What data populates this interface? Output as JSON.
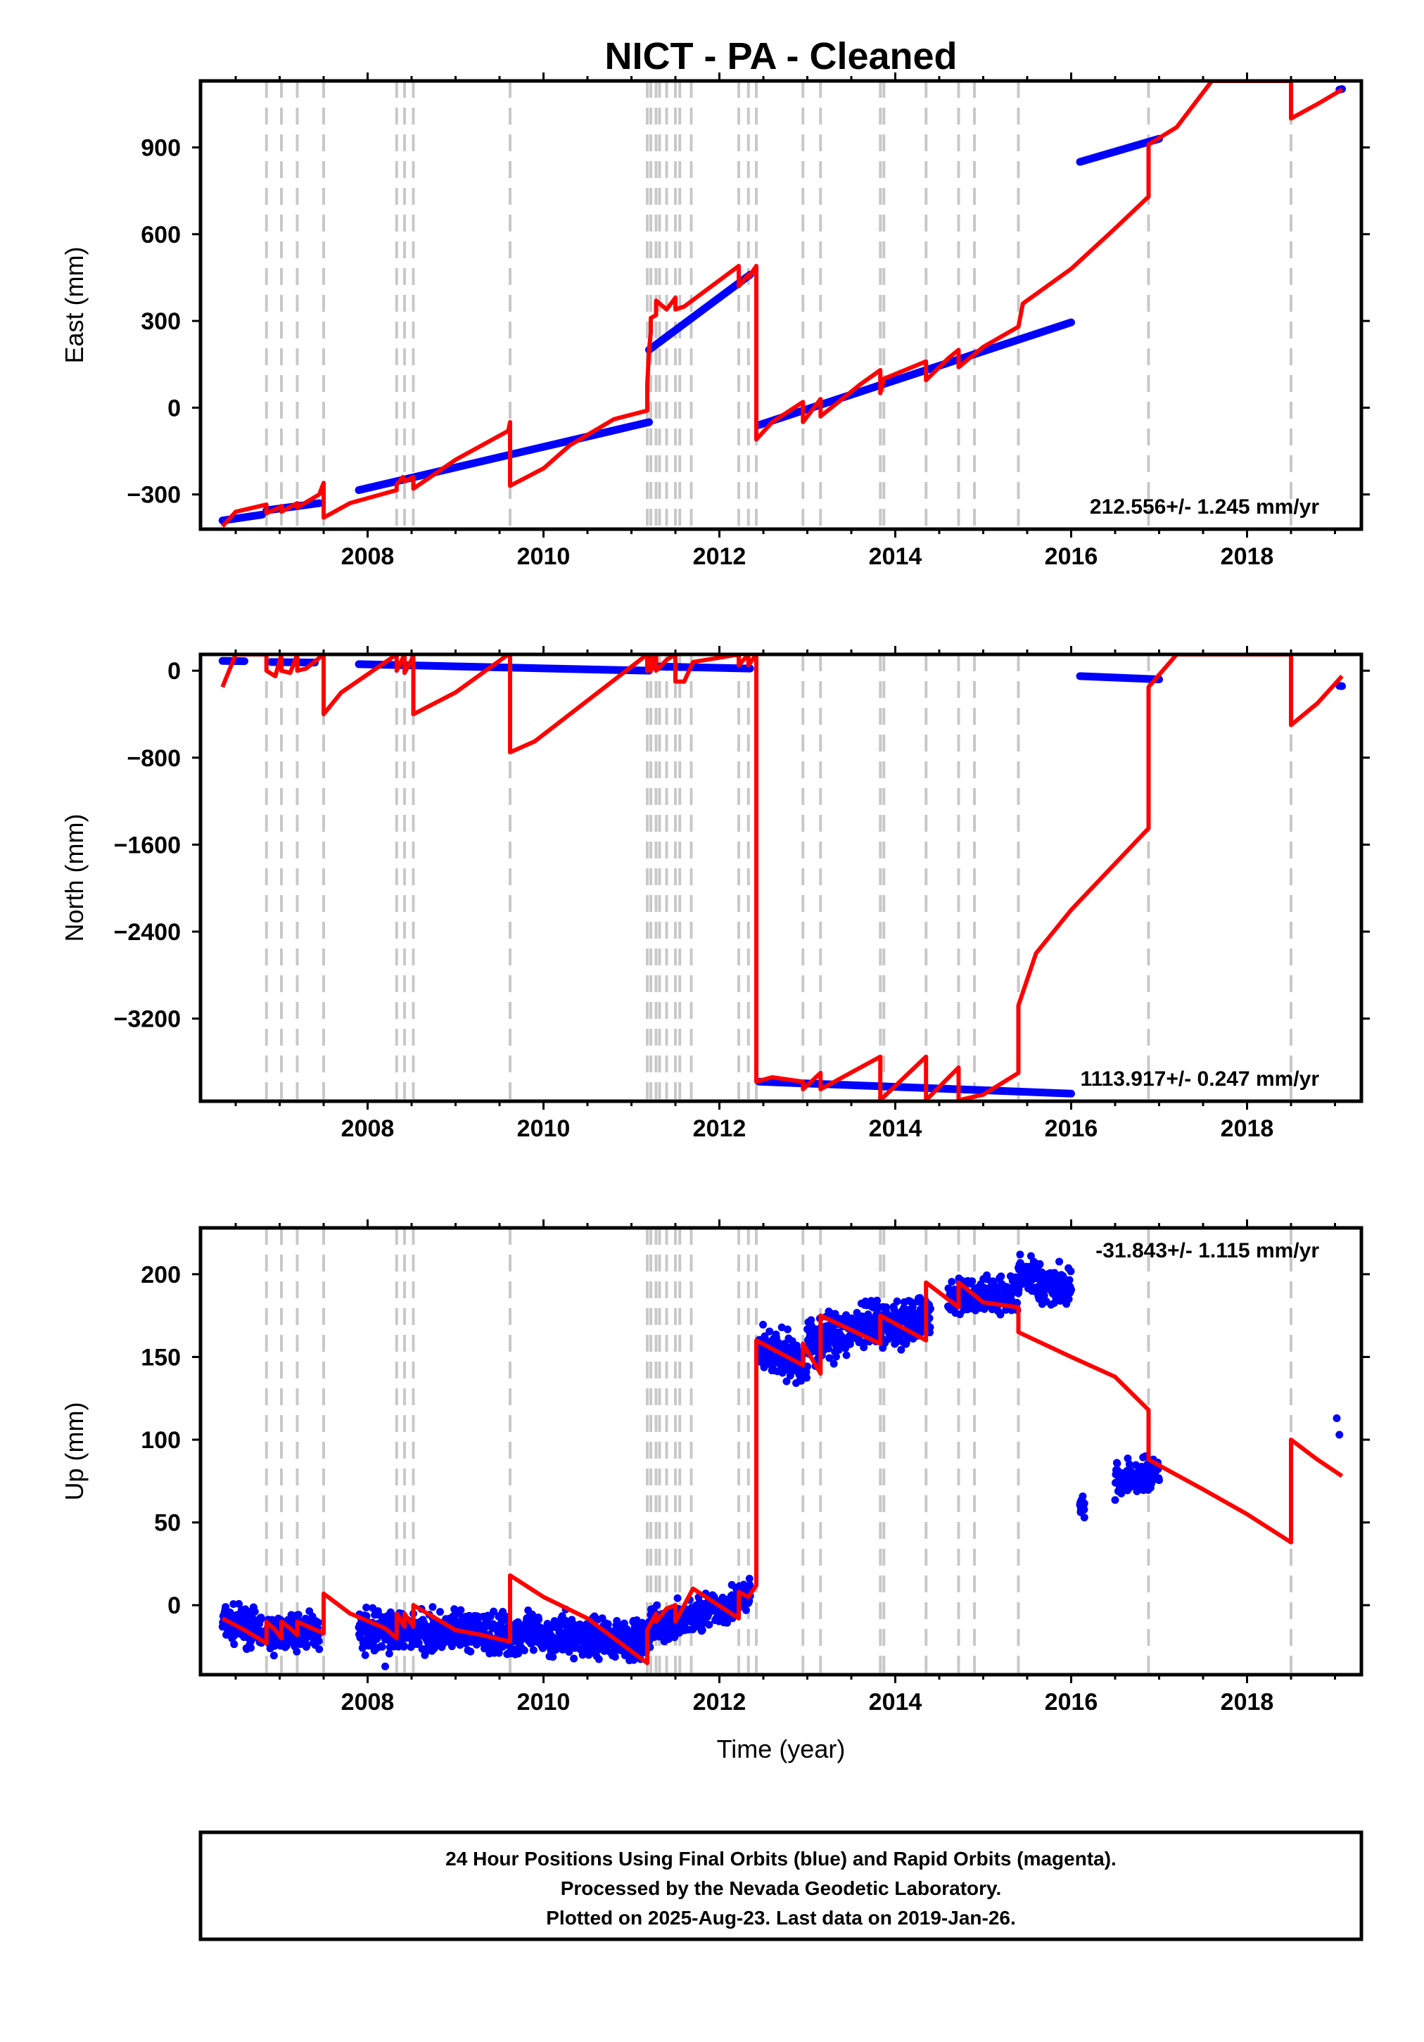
{
  "title": "NICT  - PA - Cleaned",
  "colors": {
    "model": "#ff0000",
    "observations": "#0000ff",
    "event_lines": "#c8c8c8",
    "frame": "#000000"
  },
  "footer": {
    "line1": "24 Hour Positions Using Final Orbits (blue) and Rapid Orbits (magenta).",
    "line2": "Processed by the Nevada Geodetic Laboratory.",
    "line3": "Plotted on 2025-Aug-23. Last data on 2019-Jan-26."
  },
  "chart_data": [
    {
      "type": "scatter",
      "name": "east",
      "ylabel": "East (mm)",
      "xlabel": "",
      "xlim": [
        2006.1,
        2019.3
      ],
      "ylim": [
        -420,
        1130
      ],
      "x_ticks": [
        2008,
        2010,
        2012,
        2014,
        2016,
        2018
      ],
      "x_tick_labels": [
        "2008",
        "2010",
        "2012",
        "2014",
        "2016",
        "2018"
      ],
      "y_ticks": [
        -300,
        0,
        300,
        600,
        900
      ],
      "y_tick_labels": [
        "−300",
        "0",
        "300",
        "600",
        "900"
      ],
      "rate": "212.556+/- 1.245 mm/yr",
      "rate_position": "bottom-right",
      "event_lines": [
        2006.85,
        2007.02,
        2007.2,
        2007.5,
        2008.33,
        2008.42,
        2008.52,
        2009.62,
        2011.18,
        2011.22,
        2011.28,
        2011.32,
        2011.4,
        2011.5,
        2011.55,
        2011.68,
        2012.22,
        2012.33,
        2012.42,
        2012.95,
        2013.15,
        2013.83,
        2013.87,
        2014.35,
        2014.72,
        2014.9,
        2015.4,
        2016.88,
        2018.5
      ],
      "observations": [
        {
          "x": [
            2006.35,
            2006.8
          ],
          "y": [
            -390,
            -370
          ]
        },
        {
          "x": [
            2006.85,
            2007.45
          ],
          "y": [
            -355,
            -330
          ]
        },
        {
          "x": [
            2007.9,
            2011.2
          ],
          "y": [
            -285,
            -50
          ]
        },
        {
          "x": [
            2011.2,
            2012.35
          ],
          "y": [
            200,
            460
          ]
        },
        {
          "x": [
            2012.45,
            2016.0
          ],
          "y": [
            -60,
            295
          ]
        },
        {
          "x": [
            2016.1,
            2017.0
          ],
          "y": [
            850,
            930
          ]
        },
        {
          "x": [
            2019.05,
            2019.08
          ],
          "y": [
            1100,
            1102
          ]
        }
      ],
      "model": {
        "x": [
          2006.35,
          2006.5,
          2006.85,
          2006.85,
          2007.0,
          2007.02,
          2007.02,
          2007.2,
          2007.2,
          2007.45,
          2007.5,
          2007.5,
          2007.8,
          2008.33,
          2008.33,
          2008.4,
          2008.42,
          2008.42,
          2008.52,
          2008.52,
          2009.0,
          2009.6,
          2009.62,
          2009.62,
          2010.0,
          2010.3,
          2010.8,
          2011.18,
          2011.18,
          2011.2,
          2011.22,
          2011.22,
          2011.28,
          2011.28,
          2011.4,
          2011.5,
          2011.5,
          2011.6,
          2012.22,
          2012.22,
          2012.33,
          2012.33,
          2012.42,
          2012.42,
          2012.6,
          2012.95,
          2012.95,
          2013.15,
          2013.15,
          2013.6,
          2013.83,
          2013.83,
          2013.87,
          2014.35,
          2014.35,
          2014.6,
          2014.72,
          2014.72,
          2015.0,
          2015.4,
          2015.45,
          2016.0,
          2016.5,
          2016.88,
          2016.88,
          2017.2,
          2017.6,
          2018.5,
          2018.5,
          2018.8,
          2019.08
        ],
        "y": [
          -410,
          -360,
          -335,
          -365,
          -345,
          -340,
          -360,
          -330,
          -345,
          -300,
          -260,
          -380,
          -330,
          -285,
          -265,
          -240,
          -250,
          -255,
          -240,
          -280,
          -180,
          -80,
          -50,
          -270,
          -210,
          -130,
          -40,
          -10,
          80,
          200,
          260,
          310,
          320,
          370,
          340,
          380,
          340,
          350,
          490,
          420,
          460,
          450,
          490,
          -110,
          -50,
          20,
          -50,
          30,
          -30,
          80,
          130,
          50,
          100,
          160,
          95,
          170,
          200,
          140,
          210,
          280,
          360,
          480,
          620,
          730,
          910,
          970,
          1130,
          1130,
          1000,
          1050,
          1100
        ]
      }
    },
    {
      "type": "scatter",
      "name": "north",
      "ylabel": "North (mm)",
      "xlabel": "",
      "xlim": [
        2006.1,
        2019.3
      ],
      "ylim": [
        -3960,
        150
      ],
      "x_ticks": [
        2008,
        2010,
        2012,
        2014,
        2016,
        2018
      ],
      "x_tick_labels": [
        "2008",
        "2010",
        "2012",
        "2014",
        "2016",
        "2018"
      ],
      "y_ticks": [
        -3200,
        -2400,
        -1600,
        -800,
        0
      ],
      "y_tick_labels": [
        "−3200",
        "−2400",
        "−1600",
        "−800",
        "0"
      ],
      "rate": "1113.917+/- 0.247 mm/yr",
      "rate_position": "bottom-right",
      "event_lines": [
        2006.85,
        2007.02,
        2007.2,
        2007.5,
        2008.33,
        2008.42,
        2008.52,
        2009.62,
        2011.18,
        2011.22,
        2011.28,
        2011.32,
        2011.4,
        2011.5,
        2011.55,
        2011.68,
        2012.22,
        2012.33,
        2012.42,
        2012.95,
        2013.15,
        2013.83,
        2013.87,
        2014.35,
        2014.72,
        2014.9,
        2015.4,
        2016.88,
        2018.5
      ],
      "observations": [
        {
          "x": [
            2006.35,
            2006.6
          ],
          "y": [
            90,
            88
          ]
        },
        {
          "x": [
            2006.9,
            2007.4
          ],
          "y": [
            80,
            75
          ]
        },
        {
          "x": [
            2007.9,
            2011.2
          ],
          "y": [
            60,
            0
          ]
        },
        {
          "x": [
            2011.2,
            2012.35
          ],
          "y": [
            40,
            20
          ]
        },
        {
          "x": [
            2012.45,
            2016.0
          ],
          "y": [
            -3780,
            -3890
          ]
        },
        {
          "x": [
            2016.1,
            2017.0
          ],
          "y": [
            -50,
            -80
          ]
        },
        {
          "x": [
            2019.05,
            2019.08
          ],
          "y": [
            -140,
            -142
          ]
        }
      ],
      "model": {
        "x": [
          2006.35,
          2006.5,
          2006.55,
          2006.85,
          2006.85,
          2006.95,
          2007.02,
          2007.02,
          2007.12,
          2007.2,
          2007.2,
          2007.3,
          2007.5,
          2007.5,
          2007.7,
          2008.33,
          2008.33,
          2008.42,
          2008.42,
          2008.5,
          2008.52,
          2008.52,
          2009.0,
          2009.6,
          2009.62,
          2009.62,
          2009.9,
          2011.18,
          2011.18,
          2011.22,
          2011.22,
          2011.28,
          2011.28,
          2011.4,
          2011.5,
          2011.5,
          2011.6,
          2011.7,
          2012.22,
          2012.22,
          2012.33,
          2012.33,
          2012.42,
          2012.42,
          2012.6,
          2012.95,
          2012.95,
          2013.15,
          2013.15,
          2013.83,
          2013.83,
          2014.35,
          2014.35,
          2014.72,
          2014.72,
          2015.0,
          2015.4,
          2015.4,
          2015.6,
          2016.0,
          2016.88,
          2016.88,
          2017.2,
          2018.5,
          2018.5,
          2018.8,
          2019.08
        ],
        "y": [
          -150,
          150,
          150,
          150,
          0,
          -50,
          150,
          0,
          -20,
          150,
          0,
          20,
          150,
          -400,
          -200,
          150,
          0,
          150,
          -20,
          100,
          150,
          -400,
          -200,
          150,
          150,
          -750,
          -650,
          150,
          0,
          150,
          0,
          150,
          0,
          100,
          150,
          -100,
          -100,
          80,
          150,
          50,
          150,
          50,
          150,
          -3780,
          -3740,
          -3780,
          -3850,
          -3700,
          -3850,
          -3550,
          -3950,
          -3550,
          -3950,
          -3650,
          -3950,
          -3900,
          -3700,
          -3080,
          -2600,
          -2200,
          -1450,
          -150,
          150,
          150,
          -500,
          -300,
          -50
        ]
      }
    },
    {
      "type": "scatter",
      "name": "up",
      "ylabel": "Up (mm)",
      "xlabel": "Time (year)",
      "xlim": [
        2006.1,
        2019.3
      ],
      "ylim": [
        -42,
        228
      ],
      "x_ticks": [
        2008,
        2010,
        2012,
        2014,
        2016,
        2018
      ],
      "x_tick_labels": [
        "2008",
        "2010",
        "2012",
        "2014",
        "2016",
        "2018"
      ],
      "y_ticks": [
        0,
        50,
        100,
        150,
        200
      ],
      "y_tick_labels": [
        "0",
        "50",
        "100",
        "150",
        "200"
      ],
      "rate": "-31.843+/- 1.115 mm/yr",
      "rate_position": "top-right",
      "event_lines": [
        2006.85,
        2007.02,
        2007.2,
        2007.5,
        2008.33,
        2008.42,
        2008.52,
        2009.62,
        2011.18,
        2011.22,
        2011.28,
        2011.32,
        2011.4,
        2011.5,
        2011.55,
        2011.68,
        2012.22,
        2012.33,
        2012.42,
        2012.95,
        2013.15,
        2013.83,
        2013.87,
        2014.35,
        2014.72,
        2014.9,
        2015.4,
        2016.88,
        2018.5
      ],
      "observations": [
        {
          "x": [
            2006.35,
            2006.8
          ],
          "y": [
            -10,
            -15
          ],
          "spread": 8
        },
        {
          "x": [
            2006.85,
            2007.45
          ],
          "y": [
            -18,
            -15
          ],
          "spread": 8
        },
        {
          "x": [
            2007.9,
            2011.2
          ],
          "y": [
            -15,
            -20
          ],
          "spread": 9
        },
        {
          "x": [
            2011.2,
            2012.35
          ],
          "y": [
            -15,
            5
          ],
          "spread": 8
        },
        {
          "x": [
            2012.45,
            2013.0
          ],
          "y": [
            155,
            145
          ],
          "spread": 10
        },
        {
          "x": [
            2013.0,
            2013.8
          ],
          "y": [
            160,
            170
          ],
          "spread": 10
        },
        {
          "x": [
            2013.8,
            2014.4
          ],
          "y": [
            168,
            175
          ],
          "spread": 10
        },
        {
          "x": [
            2014.6,
            2015.4
          ],
          "y": [
            185,
            190
          ],
          "spread": 8
        },
        {
          "x": [
            2015.4,
            2016.0
          ],
          "y": [
            200,
            192
          ],
          "spread": 9
        },
        {
          "x": [
            2016.5,
            2017.0
          ],
          "y": [
            75,
            80
          ],
          "spread": 8
        },
        {
          "x": [
            2016.1,
            2016.15
          ],
          "y": [
            62,
            60
          ],
          "spread": 4
        }
      ],
      "isolated_points": [
        {
          "x": 2008.2,
          "y": -37
        },
        {
          "x": 2016.15,
          "y": 53
        },
        {
          "x": 2019.02,
          "y": 113
        },
        {
          "x": 2019.05,
          "y": 103
        }
      ],
      "model": {
        "x": [
          2006.35,
          2006.6,
          2006.85,
          2006.85,
          2006.95,
          2007.02,
          2007.02,
          2007.12,
          2007.2,
          2007.2,
          2007.5,
          2007.5,
          2007.8,
          2008.2,
          2008.33,
          2008.33,
          2008.42,
          2008.42,
          2008.52,
          2008.52,
          2009.0,
          2009.3,
          2009.62,
          2009.62,
          2010.0,
          2010.5,
          2011.18,
          2011.18,
          2011.28,
          2011.28,
          2011.4,
          2011.5,
          2011.5,
          2011.7,
          2012.22,
          2012.22,
          2012.33,
          2012.33,
          2012.42,
          2012.42,
          2012.95,
          2012.95,
          2013.15,
          2013.15,
          2013.83,
          2013.83,
          2014.35,
          2014.35,
          2014.72,
          2014.72,
          2015.0,
          2015.4,
          2015.4,
          2016.0,
          2016.5,
          2016.88,
          2016.88,
          2017.5,
          2018.0,
          2018.5,
          2018.5,
          2018.8,
          2019.08
        ],
        "y": [
          -8,
          -15,
          -23,
          -10,
          -15,
          -20,
          -10,
          -14,
          -18,
          -10,
          -17,
          7,
          -5,
          -14,
          -20,
          -5,
          -13,
          -5,
          -13,
          0,
          -15,
          -18,
          -22,
          18,
          5,
          -8,
          -35,
          -15,
          -5,
          -10,
          -2,
          0,
          -10,
          10,
          -8,
          8,
          5,
          5,
          12,
          160,
          145,
          158,
          140,
          175,
          158,
          175,
          160,
          195,
          180,
          195,
          183,
          180,
          165,
          150,
          138,
          118,
          88,
          70,
          55,
          38,
          100,
          88,
          78
        ]
      }
    }
  ]
}
